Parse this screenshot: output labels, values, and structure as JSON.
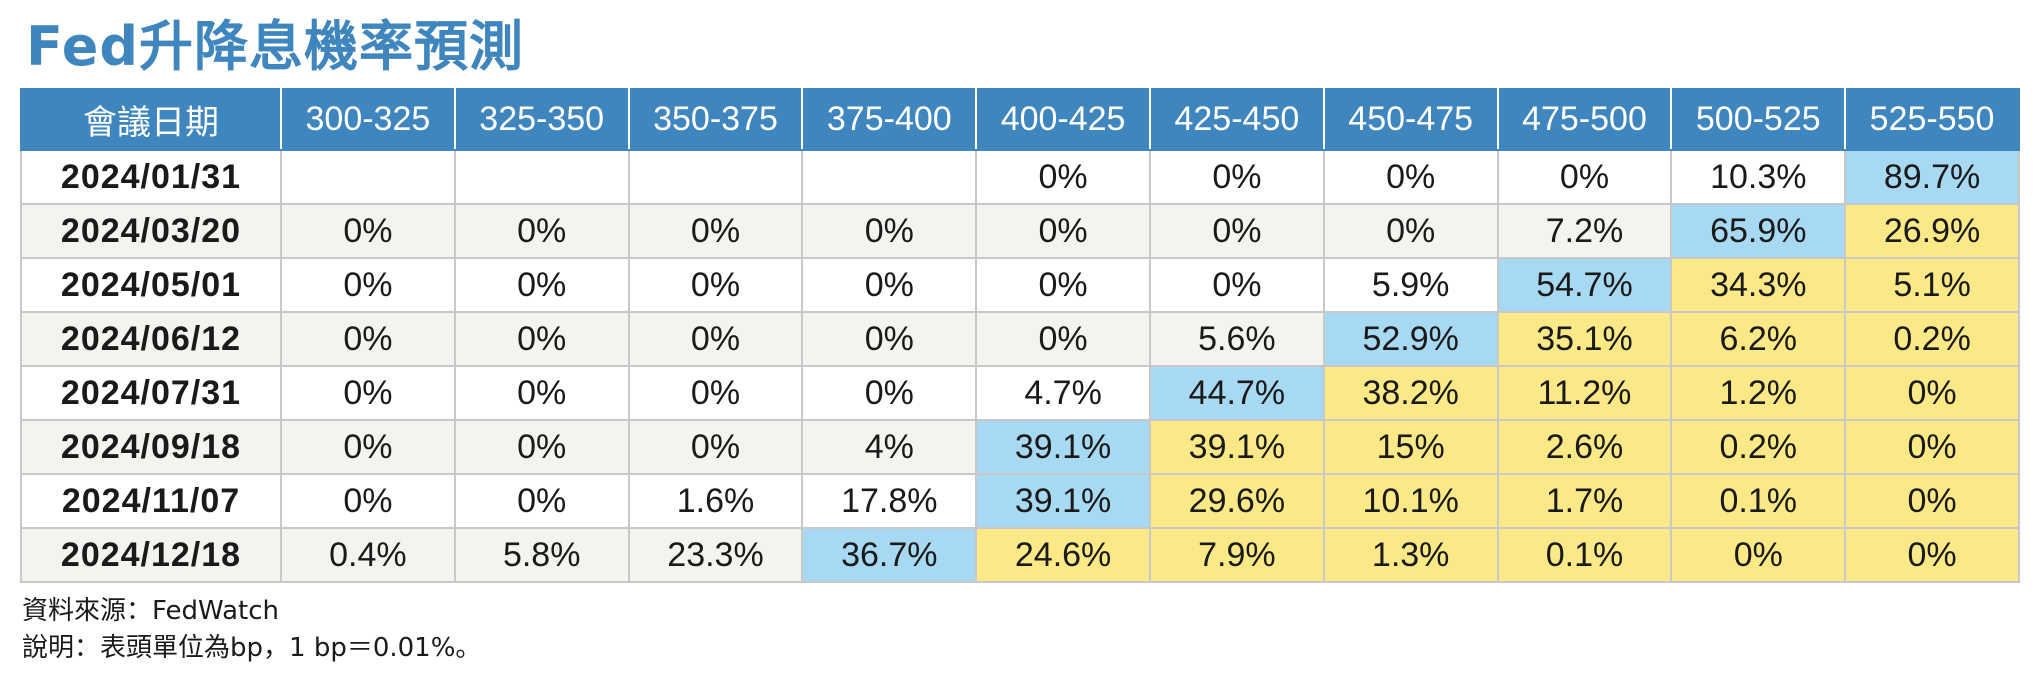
{
  "title": "Fed升降息機率預測",
  "colors": {
    "header_bg": "#3f86bf",
    "highlight_blue": "#a8d9f2",
    "highlight_yellow": "#fbe887",
    "row_alt": "#f4f3ef"
  },
  "chart_data": {
    "type": "table",
    "title": "Fed升降息機率預測",
    "row_header": "會議日期",
    "columns": [
      "300-325",
      "325-350",
      "350-375",
      "375-400",
      "400-425",
      "425-450",
      "450-475",
      "475-500",
      "500-525",
      "525-550"
    ],
    "rows": [
      {
        "date": "2024/01/31",
        "values": [
          "",
          "",
          "",
          "",
          "0%",
          "0%",
          "0%",
          "0%",
          "10.3%",
          "89.7%"
        ],
        "blue": [
          9
        ],
        "yellow": []
      },
      {
        "date": "2024/03/20",
        "values": [
          "0%",
          "0%",
          "0%",
          "0%",
          "0%",
          "0%",
          "0%",
          "7.2%",
          "65.9%",
          "26.9%"
        ],
        "blue": [
          8
        ],
        "yellow": [
          9
        ]
      },
      {
        "date": "2024/05/01",
        "values": [
          "0%",
          "0%",
          "0%",
          "0%",
          "0%",
          "0%",
          "5.9%",
          "54.7%",
          "34.3%",
          "5.1%"
        ],
        "blue": [
          7
        ],
        "yellow": [
          8,
          9
        ]
      },
      {
        "date": "2024/06/12",
        "values": [
          "0%",
          "0%",
          "0%",
          "0%",
          "0%",
          "5.6%",
          "52.9%",
          "35.1%",
          "6.2%",
          "0.2%"
        ],
        "blue": [
          6
        ],
        "yellow": [
          7,
          8,
          9
        ]
      },
      {
        "date": "2024/07/31",
        "values": [
          "0%",
          "0%",
          "0%",
          "0%",
          "4.7%",
          "44.7%",
          "38.2%",
          "11.2%",
          "1.2%",
          "0%"
        ],
        "blue": [
          5
        ],
        "yellow": [
          6,
          7,
          8,
          9
        ]
      },
      {
        "date": "2024/09/18",
        "values": [
          "0%",
          "0%",
          "0%",
          "4%",
          "39.1%",
          "39.1%",
          "15%",
          "2.6%",
          "0.2%",
          "0%"
        ],
        "blue": [
          4
        ],
        "yellow": [
          5,
          6,
          7,
          8,
          9
        ]
      },
      {
        "date": "2024/11/07",
        "values": [
          "0%",
          "0%",
          "1.6%",
          "17.8%",
          "39.1%",
          "29.6%",
          "10.1%",
          "1.7%",
          "0.1%",
          "0%"
        ],
        "blue": [
          4
        ],
        "yellow": [
          5,
          6,
          7,
          8,
          9
        ]
      },
      {
        "date": "2024/12/18",
        "values": [
          "0.4%",
          "5.8%",
          "23.3%",
          "36.7%",
          "24.6%",
          "7.9%",
          "1.3%",
          "0.1%",
          "0%",
          "0%"
        ],
        "blue": [
          3
        ],
        "yellow": [
          4,
          5,
          6,
          7,
          8,
          9
        ]
      }
    ]
  },
  "footnotes": {
    "source": "資料來源：FedWatch",
    "note": "說明：表頭單位為bp，1 bp＝0.01%。"
  }
}
